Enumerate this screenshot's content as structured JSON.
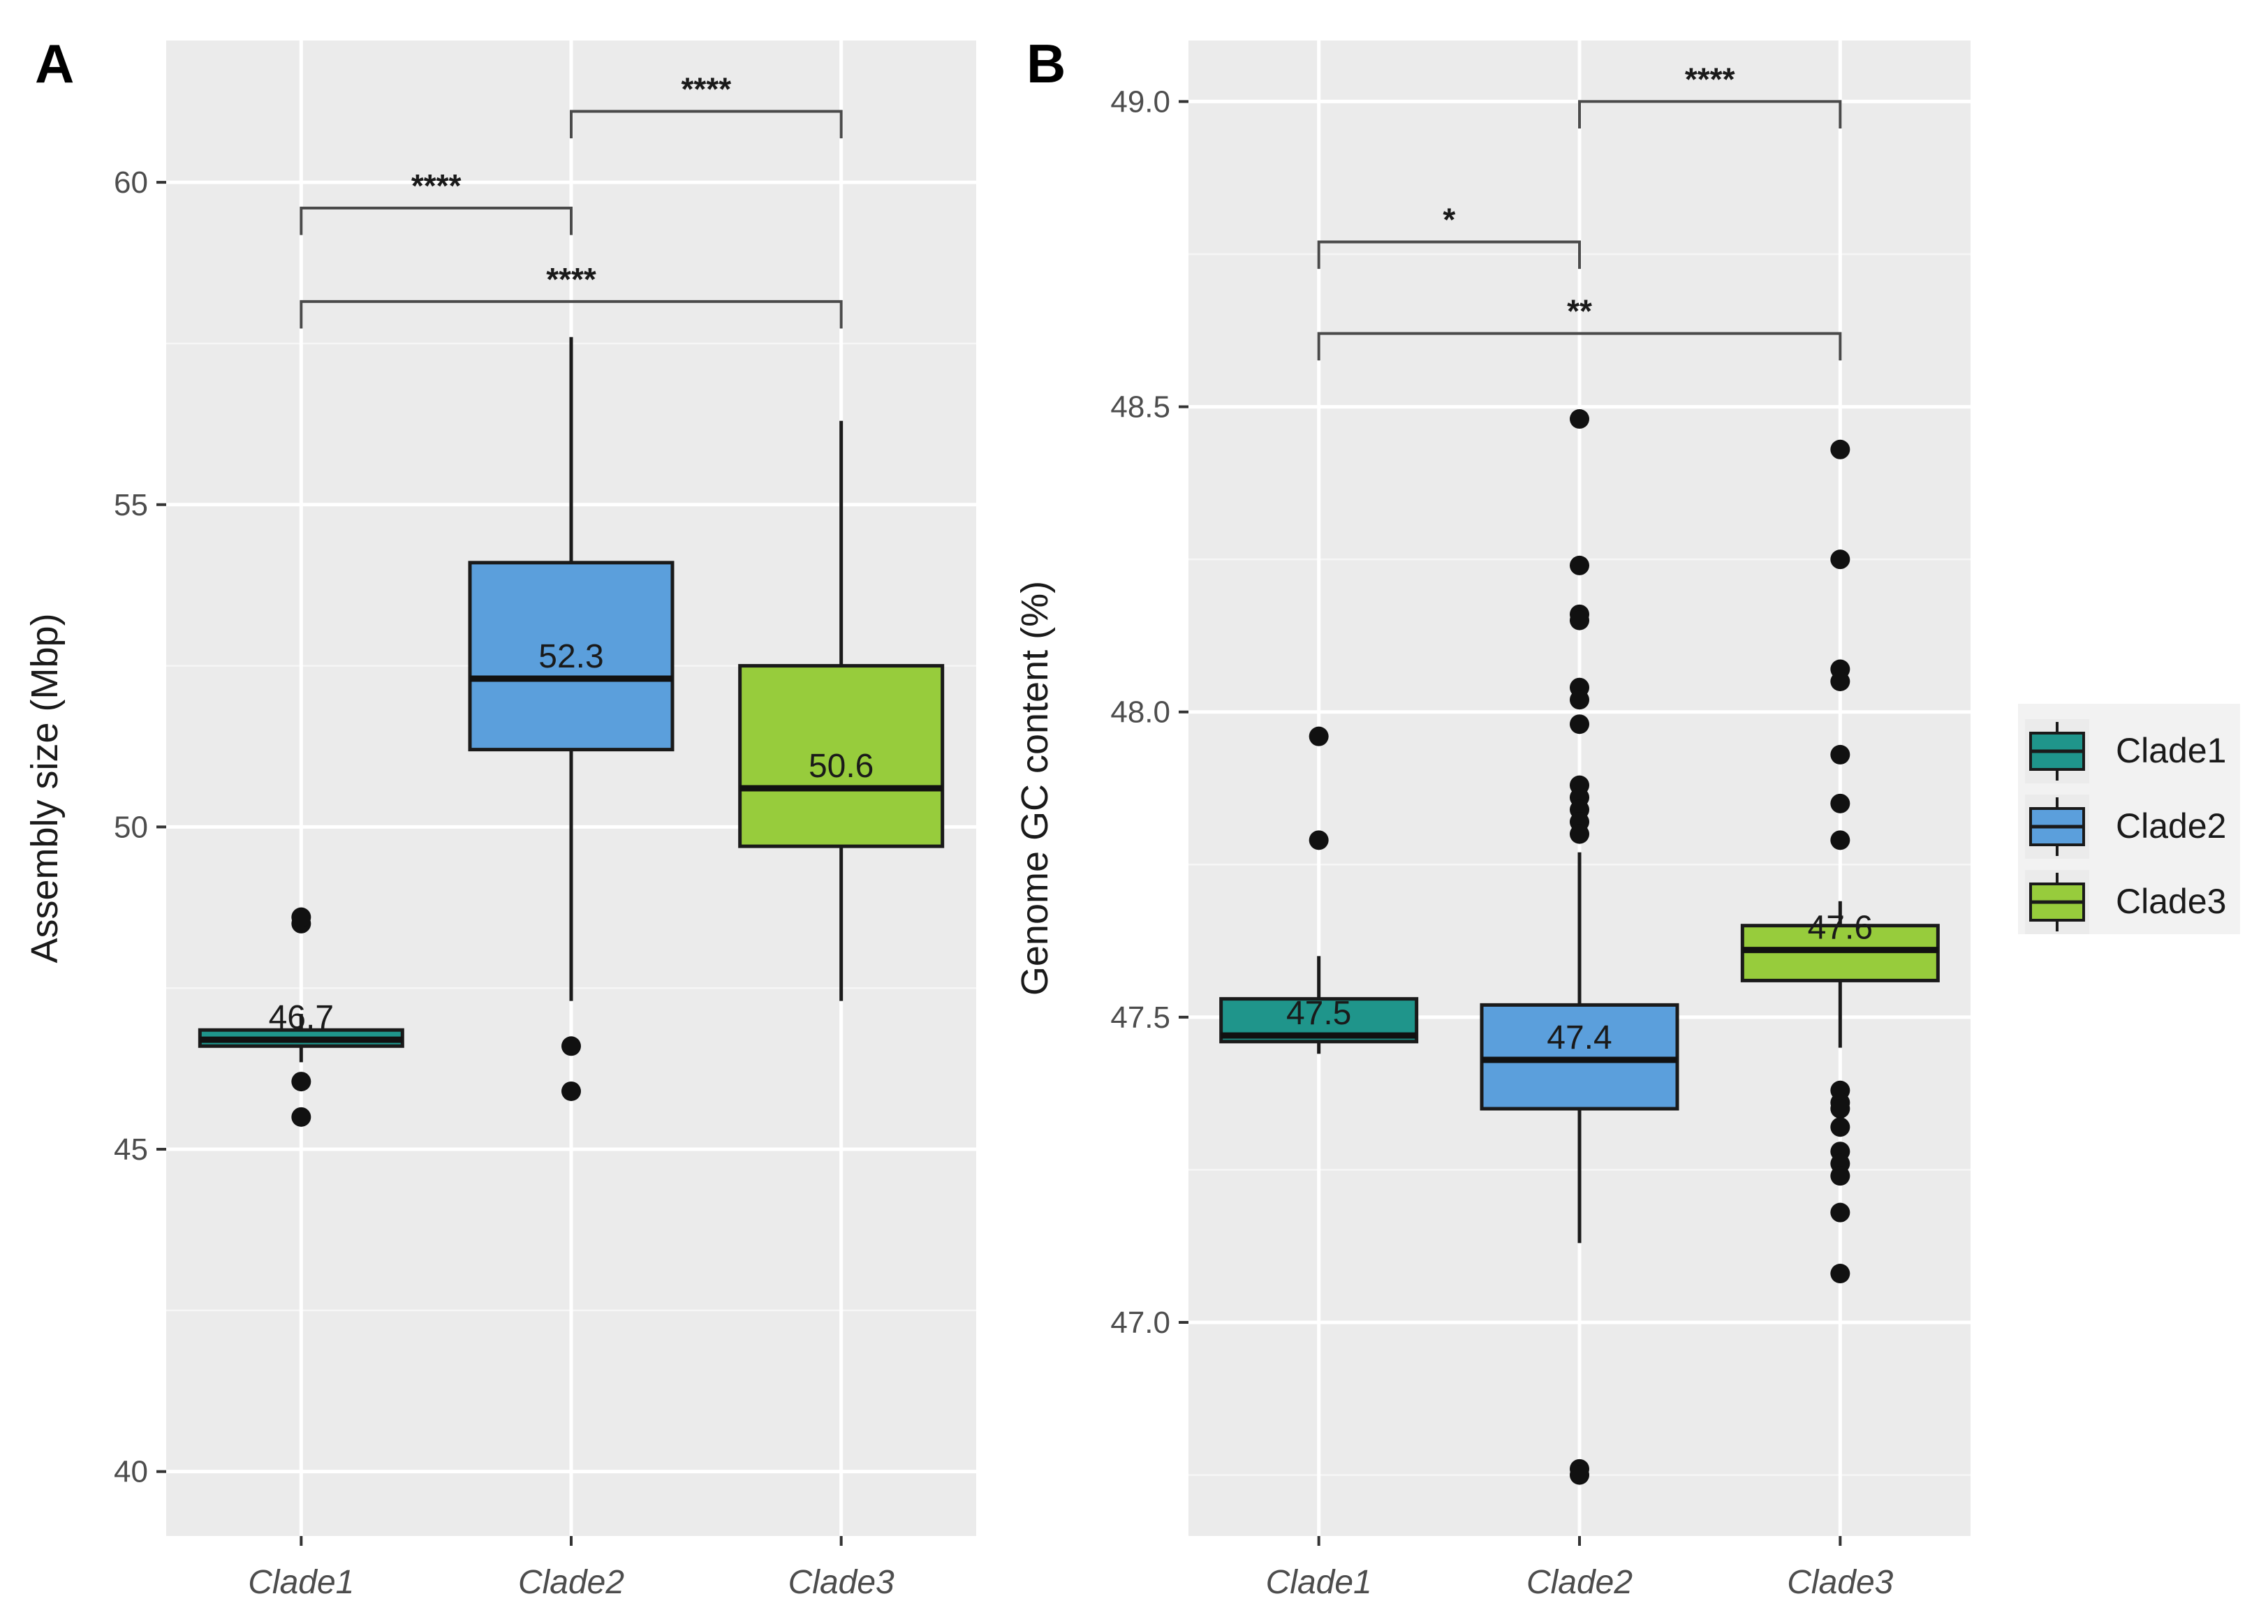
{
  "chart_data": [
    {
      "panel_label": "A",
      "type": "box",
      "ylabel": "Assembly size (Mbp)",
      "xlabel": "",
      "ylim": [
        39.0,
        62.2
      ],
      "yticks": [
        40,
        45,
        50,
        55,
        60
      ],
      "ytick_labels": [
        "40",
        "45",
        "50",
        "55",
        "60"
      ],
      "categories": [
        "Clade1",
        "Clade2",
        "Clade3"
      ],
      "boxes": [
        {
          "category": "Clade1",
          "q1": 46.6,
          "median": 46.7,
          "q3": 46.85,
          "whisker_low": 46.35,
          "whisker_high": 47.1,
          "outliers": [
            48.5,
            48.6,
            46.05,
            45.5
          ],
          "median_label": "46.7"
        },
        {
          "category": "Clade2",
          "q1": 51.2,
          "median": 52.3,
          "q3": 54.1,
          "whisker_low": 47.3,
          "whisker_high": 57.6,
          "outliers": [
            46.6,
            45.9
          ],
          "median_label": "52.3"
        },
        {
          "category": "Clade3",
          "q1": 49.7,
          "median": 50.6,
          "q3": 52.5,
          "whisker_low": 47.3,
          "whisker_high": 56.3,
          "outliers": [],
          "median_label": "50.6"
        }
      ],
      "comparisons": [
        {
          "from": "Clade1",
          "to": "Clade2",
          "y": 59.6,
          "label": "****"
        },
        {
          "from": "Clade2",
          "to": "Clade3",
          "y": 61.1,
          "label": "****"
        },
        {
          "from": "Clade1",
          "to": "Clade3",
          "y": 58.15,
          "label": "****"
        }
      ],
      "grid": true
    },
    {
      "panel_label": "B",
      "type": "box",
      "ylabel": "Genome GC content (%)",
      "xlabel": "",
      "ylim": [
        46.65,
        49.1
      ],
      "yticks": [
        47.0,
        47.5,
        48.0,
        48.5,
        49.0
      ],
      "ytick_labels": [
        "47.0",
        "47.5",
        "48.0",
        "48.5",
        "49.0"
      ],
      "categories": [
        "Clade1",
        "Clade2",
        "Clade3"
      ],
      "boxes": [
        {
          "category": "Clade1",
          "q1": 47.46,
          "median": 47.47,
          "q3": 47.53,
          "whisker_low": 47.44,
          "whisker_high": 47.6,
          "outliers": [
            47.96,
            47.79
          ],
          "median_label": "47.5"
        },
        {
          "category": "Clade2",
          "q1": 47.35,
          "median": 47.43,
          "q3": 47.52,
          "whisker_low": 47.13,
          "whisker_high": 47.77,
          "outliers": [
            48.48,
            48.24,
            48.16,
            48.15,
            48.04,
            48.02,
            47.98,
            47.88,
            47.86,
            47.84,
            47.82,
            47.8,
            46.76,
            46.75
          ],
          "median_label": "47.4"
        },
        {
          "category": "Clade3",
          "q1": 47.56,
          "median": 47.61,
          "q3": 47.65,
          "whisker_low": 47.45,
          "whisker_high": 47.69,
          "outliers": [
            48.43,
            48.25,
            48.07,
            48.05,
            47.93,
            47.85,
            47.79,
            47.38,
            47.36,
            47.35,
            47.32,
            47.28,
            47.26,
            47.24,
            47.18,
            47.08
          ],
          "median_label": "47.6"
        }
      ],
      "comparisons": [
        {
          "from": "Clade1",
          "to": "Clade2",
          "y": 48.77,
          "label": "*"
        },
        {
          "from": "Clade2",
          "to": "Clade3",
          "y": 49.0,
          "label": "****"
        },
        {
          "from": "Clade1",
          "to": "Clade3",
          "y": 48.62,
          "label": "**"
        }
      ],
      "grid": true
    }
  ],
  "legend": {
    "placement": "right",
    "entries": [
      {
        "label": "Clade1",
        "color": "#1f958b"
      },
      {
        "label": "Clade2",
        "color": "#5b9fdc"
      },
      {
        "label": "Clade3",
        "color": "#97cc3c"
      }
    ]
  },
  "colors": {
    "panel_bg": "#ebebeb",
    "grid_major": "#ffffff",
    "axis_text": "#4d4d4d",
    "Clade1": "#1f958b",
    "Clade2": "#5b9fdc",
    "Clade3": "#97cc3c"
  }
}
